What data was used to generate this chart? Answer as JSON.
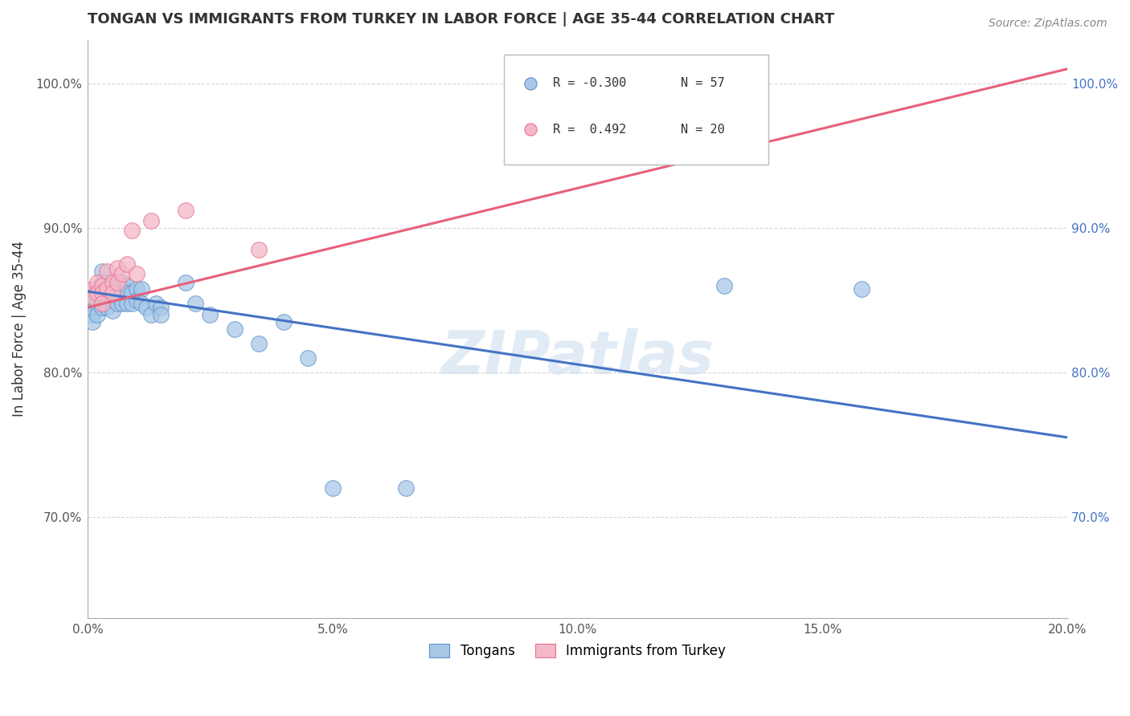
{
  "title": "TONGAN VS IMMIGRANTS FROM TURKEY IN LABOR FORCE | AGE 35-44 CORRELATION CHART",
  "source": "Source: ZipAtlas.com",
  "ylabel": "In Labor Force | Age 35-44",
  "xlim": [
    0.0,
    0.2
  ],
  "ylim": [
    0.63,
    1.03
  ],
  "xticks": [
    0.0,
    0.05,
    0.1,
    0.15,
    0.2
  ],
  "xtick_labels": [
    "0.0%",
    "5.0%",
    "10.0%",
    "15.0%",
    "20.0%"
  ],
  "yticks": [
    0.7,
    0.8,
    0.9,
    1.0
  ],
  "ytick_labels": [
    "70.0%",
    "80.0%",
    "90.0%",
    "100.0%"
  ],
  "legend_R_blue": "R = -0.300",
  "legend_N_blue": "N = 57",
  "legend_R_pink": "R =  0.492",
  "legend_N_pink": "N = 20",
  "watermark": "ZIPatlas",
  "blue_color": "#A8C8E8",
  "pink_color": "#F4B8C8",
  "blue_edge_color": "#6090C8",
  "pink_edge_color": "#E87090",
  "blue_line_color": "#4472C4",
  "pink_line_color": "#E8607A",
  "tongans_x": [
    0.001,
    0.001,
    0.001,
    0.001,
    0.001,
    0.001,
    0.002,
    0.002,
    0.002,
    0.002,
    0.003,
    0.003,
    0.003,
    0.003,
    0.003,
    0.004,
    0.004,
    0.004,
    0.004,
    0.004,
    0.005,
    0.005,
    0.005,
    0.005,
    0.005,
    0.006,
    0.006,
    0.006,
    0.007,
    0.007,
    0.007,
    0.007,
    0.008,
    0.008,
    0.008,
    0.009,
    0.009,
    0.01,
    0.01,
    0.011,
    0.011,
    0.012,
    0.013,
    0.014,
    0.015,
    0.015,
    0.02,
    0.022,
    0.025,
    0.03,
    0.035,
    0.04,
    0.045,
    0.05,
    0.065,
    0.13,
    0.158
  ],
  "tongans_y": [
    0.855,
    0.85,
    0.848,
    0.843,
    0.84,
    0.835,
    0.858,
    0.855,
    0.848,
    0.84,
    0.87,
    0.862,
    0.858,
    0.85,
    0.845,
    0.862,
    0.858,
    0.855,
    0.85,
    0.845,
    0.862,
    0.858,
    0.855,
    0.85,
    0.843,
    0.86,
    0.855,
    0.848,
    0.862,
    0.858,
    0.855,
    0.848,
    0.86,
    0.855,
    0.848,
    0.855,
    0.848,
    0.858,
    0.85,
    0.858,
    0.848,
    0.845,
    0.84,
    0.848,
    0.845,
    0.84,
    0.862,
    0.848,
    0.84,
    0.83,
    0.82,
    0.835,
    0.81,
    0.72,
    0.72,
    0.86,
    0.858
  ],
  "turkey_x": [
    0.001,
    0.001,
    0.002,
    0.002,
    0.003,
    0.003,
    0.003,
    0.004,
    0.004,
    0.005,
    0.005,
    0.006,
    0.006,
    0.007,
    0.008,
    0.009,
    0.01,
    0.013,
    0.02,
    0.035
  ],
  "turkey_y": [
    0.858,
    0.852,
    0.862,
    0.855,
    0.86,
    0.855,
    0.848,
    0.87,
    0.858,
    0.862,
    0.855,
    0.872,
    0.862,
    0.868,
    0.875,
    0.898,
    0.868,
    0.905,
    0.912,
    0.885
  ],
  "blue_trend_x": [
    0.0,
    0.2
  ],
  "blue_trend_y": [
    0.856,
    0.755
  ],
  "pink_trend_x": [
    0.0,
    0.2
  ],
  "pink_trend_y": [
    0.845,
    1.01
  ]
}
